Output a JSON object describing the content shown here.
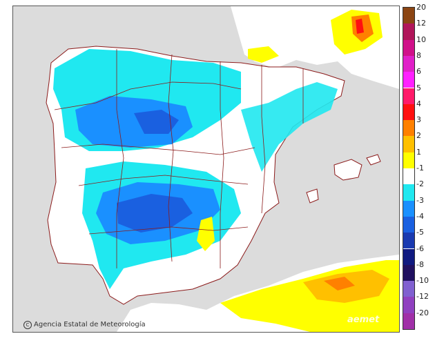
{
  "map": {
    "credit": "Agencia Estatal de Meteorología",
    "logo": "aemet",
    "colors": {
      "sea": "#dcdcdc",
      "land_neutral": "#ffffff",
      "border": "#8b1a1a"
    }
  },
  "legend": {
    "items": [
      {
        "label": "20",
        "color": "#8b4513"
      },
      {
        "label": "12",
        "color": "#b0165a"
      },
      {
        "label": "10",
        "color": "#d0108a"
      },
      {
        "label": "8",
        "color": "#e020c8"
      },
      {
        "label": "6",
        "color": "#ff20ff"
      },
      {
        "label": "5",
        "color": "#ff1a6a"
      },
      {
        "label": "4",
        "color": "#ff1010"
      },
      {
        "label": "3",
        "color": "#ff8000"
      },
      {
        "label": "2",
        "color": "#ffc000"
      },
      {
        "label": "1",
        "color": "#ffff00"
      },
      {
        "label": "-1",
        "color": "#ffffff"
      },
      {
        "label": "-2",
        "color": "#20e8f0"
      },
      {
        "label": "-3",
        "color": "#1a90ff"
      },
      {
        "label": "-4",
        "color": "#1a60e0"
      },
      {
        "label": "-5",
        "color": "#1a3ab0"
      },
      {
        "label": "-6",
        "color": "#101a80"
      },
      {
        "label": "-8",
        "color": "#201060"
      },
      {
        "label": "-10",
        "color": "#8060d0"
      },
      {
        "label": "-12",
        "color": "#9040c0"
      },
      {
        "label": "-20",
        "color": "#a030a8"
      }
    ]
  }
}
